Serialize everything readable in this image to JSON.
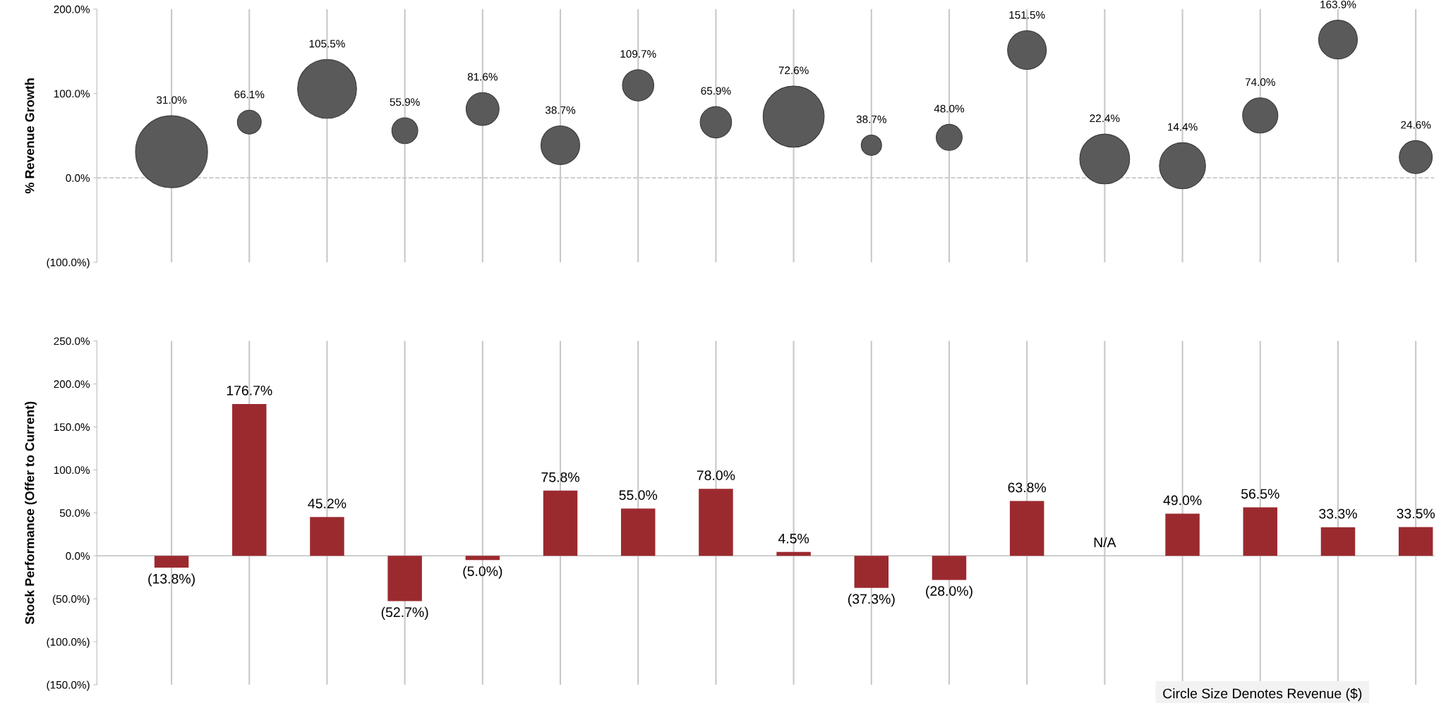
{
  "chart_data": [
    {
      "type": "bubble",
      "ylabel": "% Revenue Growth",
      "categories": [
        null,
        null,
        null,
        null,
        null,
        null,
        null,
        null,
        null,
        null,
        null,
        null,
        null,
        null,
        null,
        null,
        null
      ],
      "series": [
        {
          "color": "#5a5a5a",
          "values": [
            31.0,
            66.1,
            105.5,
            55.9,
            81.6,
            38.7,
            109.7,
            65.9,
            72.6,
            38.7,
            48.0,
            151.5,
            22.4,
            14.4,
            74.0,
            163.9,
            24.6
          ],
          "sizes": [
            1,
            0.11,
            0.67,
            0.13,
            0.21,
            0.29,
            0.19,
            0.19,
            0.72,
            0.08,
            0.13,
            0.29,
            0.48,
            0.41,
            0.24,
            0.29,
            0.21
          ],
          "value_labels": [
            "31.0%",
            "66.1%",
            "105.5%",
            "55.9%",
            "81.6%",
            "38.7%",
            "109.7%",
            "65.9%",
            "72.6%",
            "38.7%",
            "48.0%",
            "151.5%",
            "22.4%",
            "14.4%",
            "74.0%",
            "163.9%",
            "24.6%"
          ]
        }
      ],
      "ylim": [
        -100,
        200
      ],
      "yticks": [
        {
          "value": -100,
          "label": "(100.0%)"
        },
        {
          "value": 0,
          "label": "0.0%"
        },
        {
          "value": 100,
          "label": "100.0%"
        },
        {
          "value": 200,
          "label": "200.0%"
        }
      ],
      "ref_lines": [
        {
          "axis": "y",
          "value": 0,
          "color": "#bfbfbf",
          "line_style": "dashed"
        }
      ],
      "grid": "x",
      "tick_labels": "y"
    },
    {
      "type": "bar",
      "ylabel": "Stock Performance (Offer to Current)",
      "categories": [
        null,
        null,
        null,
        null,
        null,
        null,
        null,
        null,
        null,
        null,
        null,
        null,
        null,
        null,
        null,
        null,
        null
      ],
      "series": [
        {
          "color": "#9b2a2f",
          "values": [
            -13.8,
            176.7,
            45.2,
            -52.7,
            -5.0,
            75.8,
            55.0,
            78.0,
            4.5,
            -37.3,
            -28.0,
            63.8,
            null,
            49.0,
            56.5,
            33.3,
            33.5
          ],
          "value_labels": [
            "(13.8%)",
            "176.7%",
            "45.2%",
            "(52.7%)",
            "(5.0%)",
            "75.8%",
            "55.0%",
            "78.0%",
            "4.5%",
            "(37.3%)",
            "(28.0%)",
            "63.8%",
            "N/A",
            "49.0%",
            "56.5%",
            "33.3%",
            "33.5%"
          ]
        }
      ],
      "ylim": [
        -150,
        250
      ],
      "yticks": [
        {
          "value": -150,
          "label": "(150.0%)"
        },
        {
          "value": -100,
          "label": "(100.0%)"
        },
        {
          "value": -50,
          "label": "(50.0%)"
        },
        {
          "value": 0,
          "label": "0.0%"
        },
        {
          "value": 50,
          "label": "50.0%"
        },
        {
          "value": 100,
          "label": "100.0%"
        },
        {
          "value": 150,
          "label": "150.0%"
        },
        {
          "value": 200,
          "label": "200.0%"
        },
        {
          "value": 250,
          "label": "250.0%"
        }
      ],
      "annotations": [
        "Circle Size Denotes Revenue ($)"
      ],
      "grid": "x",
      "tick_labels": "y"
    }
  ]
}
